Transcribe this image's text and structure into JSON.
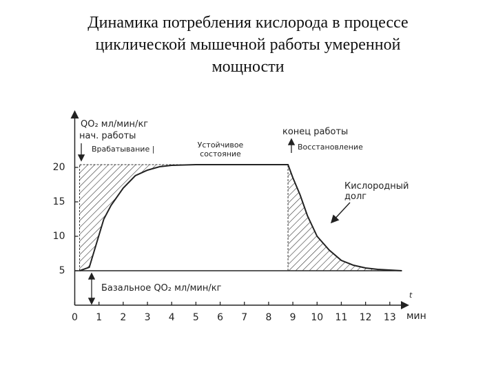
{
  "chart_data": {
    "type": "line",
    "title": [
      "Динамика потребления кислорода в процессе",
      "циклической мышечной работы умеренной",
      "мощности"
    ],
    "x": [
      0.2,
      0.6,
      0.9,
      1.2,
      1.5,
      2,
      2.5,
      3,
      3.5,
      4,
      5,
      6,
      7,
      8,
      8.8,
      9,
      9.3,
      9.6,
      10,
      10.5,
      11,
      11.5,
      12,
      12.5,
      13,
      13.5
    ],
    "values": [
      5,
      5.5,
      9,
      12.5,
      14.5,
      17,
      18.8,
      19.6,
      20.1,
      20.3,
      20.4,
      20.4,
      20.4,
      20.4,
      20.4,
      18.5,
      16,
      13,
      10,
      8,
      6.5,
      5.8,
      5.4,
      5.2,
      5.1,
      5
    ],
    "color": "#222222",
    "xlim": [
      0,
      14
    ],
    "xticks": [
      0,
      1,
      2,
      3,
      4,
      5,
      6,
      7,
      8,
      9,
      10,
      11,
      12,
      13
    ],
    "ylim": [
      0,
      28
    ],
    "yticks": [
      5,
      10,
      15,
      20
    ],
    "y_label": "QO₂ мл/мин/кг",
    "x_label": "мин",
    "x_var": "t",
    "annotations": {
      "start": "нач. работы",
      "warmup": "Врабатывание |",
      "steady": [
        "Устойчивое",
        "состояние"
      ],
      "end": "конец работы",
      "recovery": "Восстановление",
      "debt": [
        "Кислородный",
        "долг"
      ],
      "basal": "Базальное QO₂ мл/мин/кг"
    }
  }
}
